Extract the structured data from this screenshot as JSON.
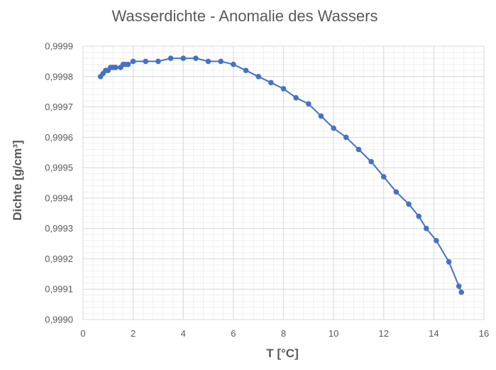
{
  "chart_data": {
    "type": "scatter",
    "title": "Wasserdichte - Anomalie des Wassers",
    "xlabel": "T [°C]",
    "ylabel": "Dichte [g/cm³]",
    "xlim": [
      0,
      16
    ],
    "ylim": [
      0.999,
      0.9999
    ],
    "x_ticks": [
      0,
      2,
      4,
      6,
      8,
      10,
      12,
      14,
      16
    ],
    "x_tick_labels": [
      "0",
      "2",
      "4",
      "6",
      "8",
      "10",
      "12",
      "14",
      "16"
    ],
    "y_ticks": [
      0.999,
      0.9991,
      0.9992,
      0.9993,
      0.9994,
      0.9995,
      0.9996,
      0.9997,
      0.9998,
      0.9999
    ],
    "y_tick_labels": [
      "0,9990",
      "0,9991",
      "0,9992",
      "0,9993",
      "0,9994",
      "0,9995",
      "0,9996",
      "0,9997",
      "0,9998",
      "0,9999"
    ],
    "grid": true,
    "lines_and_markers": true,
    "colors": {
      "series": "#4472C4",
      "grid_major": "#d9d9d9",
      "grid_minor": "#efefef",
      "text": "#595959"
    },
    "series": [
      {
        "x": [
          0.7,
          0.8,
          0.9,
          1.0,
          1.1,
          1.2,
          1.3,
          1.5,
          1.6,
          1.7,
          1.8,
          2.0,
          2.5,
          3.0,
          3.5,
          4.0,
          4.5,
          5.0,
          5.5,
          6.0,
          6.5,
          7.0,
          7.5,
          8.0,
          8.5,
          9.0,
          9.5,
          10.0,
          10.5,
          11.0,
          11.5,
          12.0,
          12.5,
          13.0,
          13.4,
          13.7,
          14.1,
          14.6,
          15.0,
          15.1
        ],
        "y": [
          0.9998,
          0.99981,
          0.99982,
          0.99982,
          0.99983,
          0.99983,
          0.99983,
          0.99983,
          0.99984,
          0.99984,
          0.99984,
          0.99985,
          0.99985,
          0.99985,
          0.99986,
          0.99986,
          0.99986,
          0.99985,
          0.99985,
          0.99984,
          0.99982,
          0.9998,
          0.99978,
          0.99976,
          0.99973,
          0.99971,
          0.99967,
          0.99963,
          0.9996,
          0.99956,
          0.99952,
          0.99947,
          0.99942,
          0.99938,
          0.99934,
          0.9993,
          0.99926,
          0.99919,
          0.99911,
          0.99909
        ]
      }
    ]
  }
}
